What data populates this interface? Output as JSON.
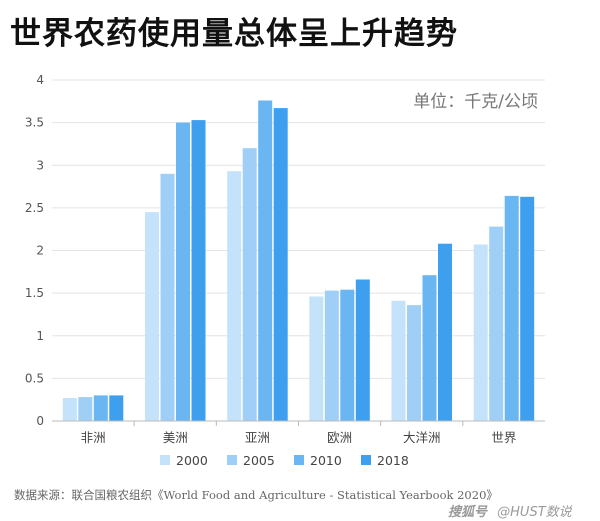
{
  "title": "世界农药使用量总体呈上升趋势",
  "source": "数据来源：联合国粮农组织《World Food and Agriculture - Statistical Yearbook 2020》",
  "watermark": {
    "logo": "搜狐号",
    "handle": "@HUST数说"
  },
  "chart_data": {
    "type": "bar",
    "unit_label": "单位：千克/公顷",
    "categories": [
      "非洲",
      "美洲",
      "亚洲",
      "欧洲",
      "大洋洲",
      "世界"
    ],
    "series": [
      {
        "name": "2000",
        "color": "#c5e2fb",
        "values": [
          0.27,
          2.45,
          2.93,
          1.46,
          1.41,
          2.07
        ]
      },
      {
        "name": "2005",
        "color": "#9fcff6",
        "values": [
          0.28,
          2.9,
          3.2,
          1.53,
          1.36,
          2.28
        ]
      },
      {
        "name": "2010",
        "color": "#6ab6f2",
        "values": [
          0.3,
          3.5,
          3.76,
          1.54,
          1.71,
          2.64
        ]
      },
      {
        "name": "2018",
        "color": "#3e9fee",
        "values": [
          0.3,
          3.53,
          3.67,
          1.66,
          2.08,
          2.63
        ]
      }
    ],
    "ylim": [
      0,
      4
    ],
    "yticks": [
      "0",
      "0.5",
      "1",
      "1.5",
      "2",
      "2.5",
      "3",
      "3.5",
      "4"
    ],
    "grid": true,
    "legend_position": "bottom"
  }
}
